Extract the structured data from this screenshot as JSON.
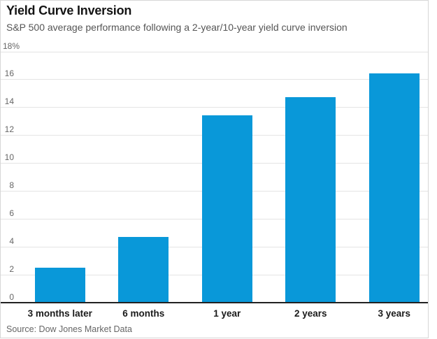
{
  "header": {
    "title": "Yield Curve Inversion",
    "subtitle": "S&P 500 average performance following a 2-year/10-year yield curve inversion"
  },
  "footer": {
    "source": "Source: Dow Jones Market Data"
  },
  "chart_data": {
    "type": "bar",
    "title": "Yield Curve Inversion",
    "subtitle": "S&P 500 average performance following a 2-year/10-year yield curve inversion",
    "source": "Source: Dow Jones Market Data",
    "categories": [
      "3 months later",
      "6 months",
      "1 year",
      "2 years",
      "3 years"
    ],
    "values": [
      2.5,
      4.7,
      13.4,
      14.7,
      16.4
    ],
    "value_unit": "%",
    "xlabel": "",
    "ylabel": "",
    "ylim": [
      0,
      18
    ],
    "ytick_step": 2,
    "ytick_top_suffix": "%",
    "grid": true,
    "legend_position": "none",
    "bar_color": "#0998d9",
    "grid_color": "#e4e4e4",
    "axis_color": "#222222"
  }
}
